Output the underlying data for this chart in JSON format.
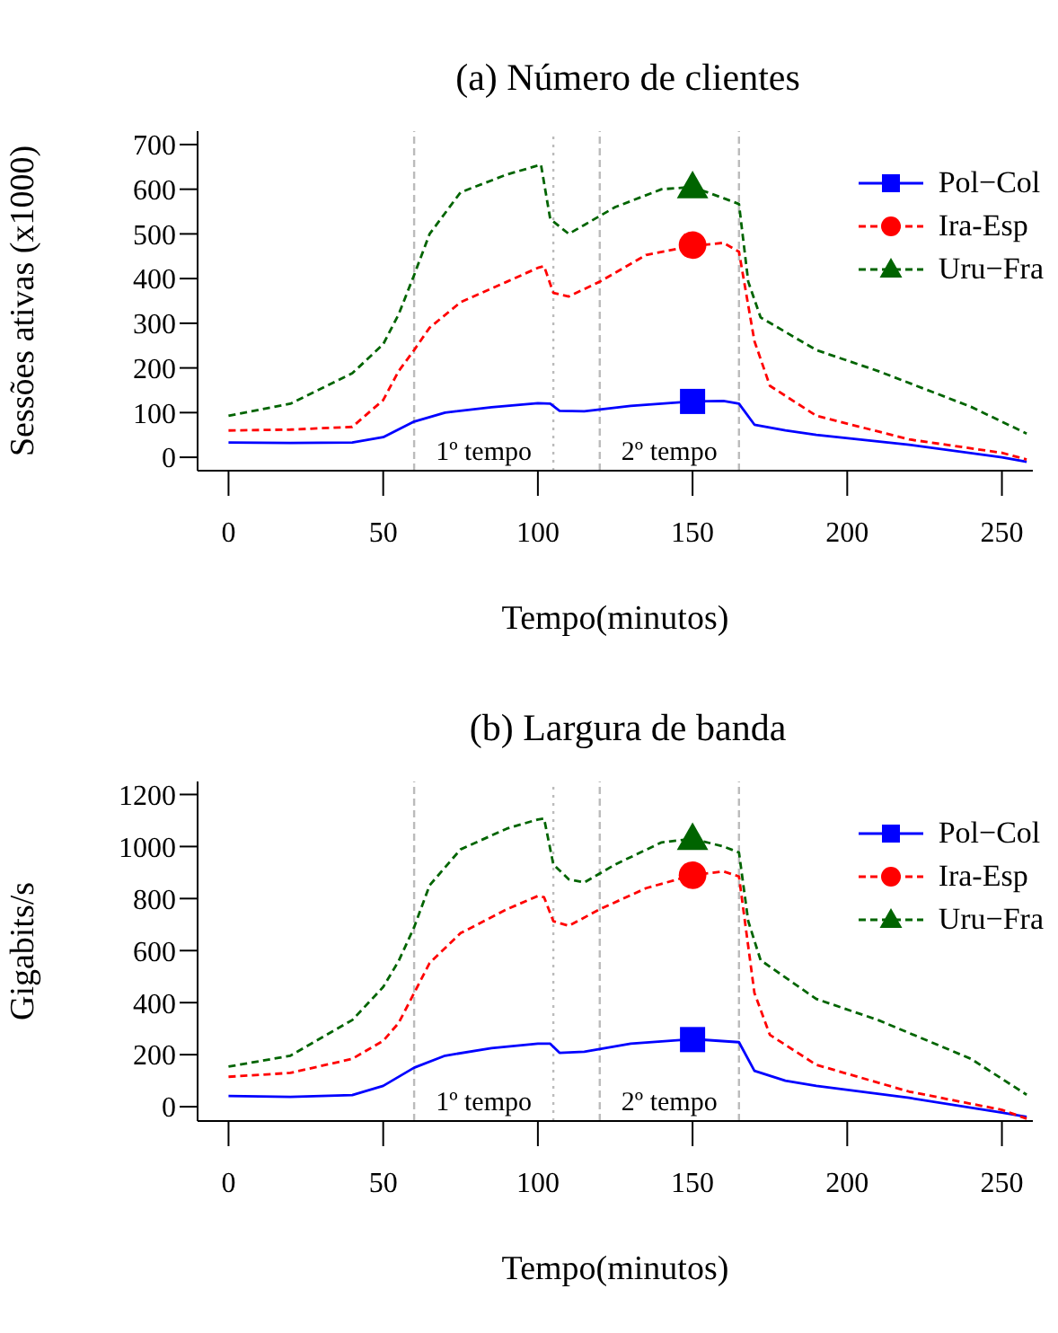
{
  "chart_data": [
    {
      "type": "line",
      "title": "(a) Número de clientes",
      "xlabel": "Tempo(minutos)",
      "ylabel": "Sessões ativas (x1000)",
      "xlim": [
        -10,
        260
      ],
      "xticks": [
        0,
        50,
        100,
        150,
        200,
        250
      ],
      "ylim": [
        -30,
        730
      ],
      "yticks": [
        0,
        100,
        200,
        300,
        400,
        500,
        600,
        700
      ],
      "grid": false,
      "legend": "top right",
      "series": [
        {
          "name": "Pol−Col",
          "color": "#0000ff",
          "line_style": "solid",
          "x": [
            0,
            20,
            40,
            50,
            60,
            70,
            85,
            100,
            104,
            107,
            115,
            130,
            150,
            160,
            165,
            170,
            180,
            190,
            220,
            250,
            258
          ],
          "values": [
            33,
            32,
            33,
            45,
            80,
            100,
            112,
            121,
            120,
            104,
            103,
            115,
            125,
            126,
            120,
            73,
            60,
            50,
            28,
            0,
            -10
          ]
        },
        {
          "name": "Ira-Esp",
          "color": "#ff0000",
          "line_style": "dashed",
          "x": [
            0,
            20,
            40,
            50,
            55,
            60,
            65,
            75,
            90,
            100,
            102,
            105,
            110,
            120,
            135,
            150,
            160,
            165,
            170,
            175,
            190,
            220,
            250,
            258
          ],
          "values": [
            60,
            62,
            68,
            128,
            193,
            240,
            290,
            347,
            393,
            424,
            428,
            368,
            360,
            393,
            453,
            473,
            480,
            460,
            260,
            160,
            93,
            40,
            10,
            -5
          ]
        },
        {
          "name": "Uru−Fra",
          "color": "#006400",
          "line_style": "dashed",
          "x": [
            0,
            20,
            40,
            50,
            55,
            60,
            65,
            75,
            90,
            100,
            101,
            104,
            110,
            115,
            125,
            140,
            150,
            160,
            165,
            168,
            172,
            190,
            210,
            240,
            258
          ],
          "values": [
            93,
            120,
            188,
            253,
            320,
            408,
            500,
            593,
            633,
            653,
            655,
            533,
            500,
            520,
            560,
            600,
            605,
            580,
            567,
            393,
            313,
            240,
            193,
            113,
            53
          ]
        },
        {
          "type": "scatter",
          "color": "#0000ff",
          "marker": "square",
          "x": [
            150
          ],
          "values": [
            125
          ]
        },
        {
          "type": "scatter",
          "color": "#ff0000",
          "marker": "circle",
          "x": [
            150
          ],
          "values": [
            475
          ]
        },
        {
          "type": "scatter",
          "color": "#006400",
          "marker": "triangle",
          "x": [
            150
          ],
          "values": [
            605
          ]
        }
      ],
      "ref_lines": [
        {
          "axis": "x",
          "value": 60,
          "color": "#bbbbbb",
          "line_style": "dashed"
        },
        {
          "axis": "x",
          "value": 105,
          "color": "#bbbbbb",
          "line_style": "dotted"
        },
        {
          "axis": "x",
          "value": 120,
          "color": "#bbbbbb",
          "line_style": "dashed"
        },
        {
          "axis": "x",
          "value": 165,
          "color": "#bbbbbb",
          "line_style": "dashed"
        }
      ],
      "annotations": [
        "1º tempo",
        "2º tempo"
      ]
    },
    {
      "type": "line",
      "title": "(b) Largura de banda",
      "xlabel": "Tempo(minutos)",
      "ylabel": "Gigabits/s",
      "xlim": [
        -10,
        260
      ],
      "xticks": [
        0,
        50,
        100,
        150,
        200,
        250
      ],
      "ylim": [
        -55,
        1250
      ],
      "yticks": [
        0,
        200,
        400,
        600,
        800,
        1000,
        1200
      ],
      "grid": false,
      "legend": "top right",
      "series": [
        {
          "name": "Pol−Col",
          "color": "#0000ff",
          "line_style": "solid",
          "x": [
            0,
            20,
            40,
            50,
            60,
            70,
            85,
            100,
            104,
            107,
            115,
            130,
            150,
            165,
            170,
            180,
            190,
            220,
            250,
            258
          ],
          "values": [
            41,
            38,
            45,
            80,
            150,
            196,
            225,
            242,
            242,
            207,
            211,
            242,
            260,
            248,
            138,
            100,
            80,
            34,
            -23,
            -39
          ]
        },
        {
          "name": "Ira-Esp",
          "color": "#ff0000",
          "line_style": "dashed",
          "x": [
            0,
            20,
            40,
            50,
            55,
            60,
            65,
            75,
            90,
            100,
            102,
            105,
            110,
            120,
            135,
            150,
            160,
            165,
            170,
            175,
            190,
            220,
            250,
            258
          ],
          "values": [
            115,
            130,
            184,
            253,
            322,
            437,
            552,
            667,
            759,
            810,
            805,
            713,
            695,
            759,
            840,
            890,
            904,
            885,
            437,
            276,
            161,
            58,
            -12,
            -46
          ]
        },
        {
          "name": "Uru−Fra",
          "color": "#006400",
          "line_style": "dashed",
          "x": [
            0,
            20,
            40,
            50,
            55,
            60,
            65,
            75,
            90,
            100,
            102,
            105,
            110,
            115,
            125,
            140,
            150,
            160,
            165,
            168,
            172,
            190,
            210,
            240,
            258
          ],
          "values": [
            154,
            196,
            333,
            460,
            560,
            690,
            851,
            989,
            1069,
            1104,
            1108,
            931,
            874,
            862,
            931,
            1016,
            1030,
            1000,
            977,
            713,
            563,
            414,
            333,
            184,
            46
          ]
        },
        {
          "type": "scatter",
          "color": "#0000ff",
          "marker": "square",
          "x": [
            150
          ],
          "values": [
            258
          ]
        },
        {
          "type": "scatter",
          "color": "#ff0000",
          "marker": "circle",
          "x": [
            150
          ],
          "values": [
            890
          ]
        },
        {
          "type": "scatter",
          "color": "#006400",
          "marker": "triangle",
          "x": [
            150
          ],
          "values": [
            1030
          ]
        }
      ],
      "ref_lines": [
        {
          "axis": "x",
          "value": 60,
          "color": "#bbbbbb",
          "line_style": "dashed"
        },
        {
          "axis": "x",
          "value": 105,
          "color": "#bbbbbb",
          "line_style": "dotted"
        },
        {
          "axis": "x",
          "value": 120,
          "color": "#bbbbbb",
          "line_style": "dashed"
        },
        {
          "axis": "x",
          "value": 165,
          "color": "#bbbbbb",
          "line_style": "dashed"
        }
      ],
      "annotations": [
        "1º tempo",
        "2º tempo"
      ]
    }
  ]
}
